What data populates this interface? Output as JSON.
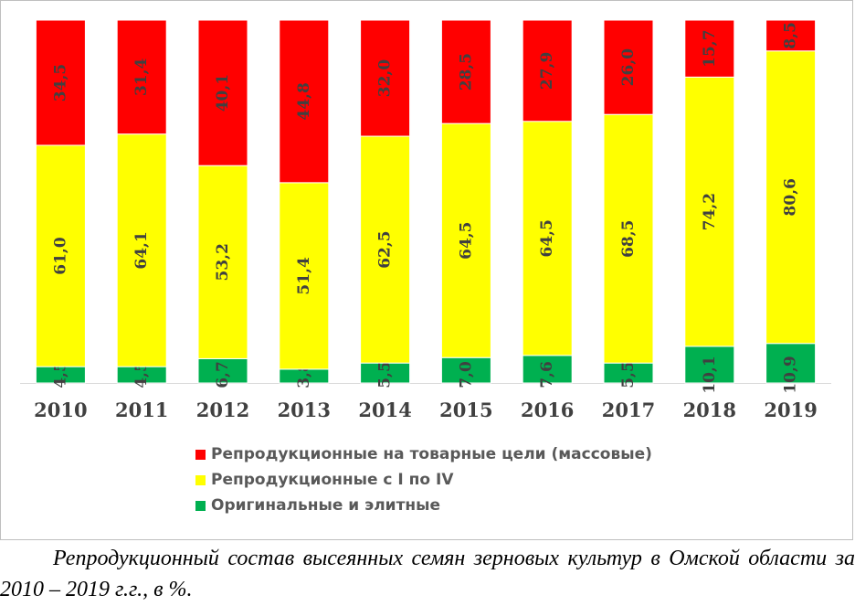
{
  "chart_data": {
    "type": "bar",
    "stacked": true,
    "normalized_percent": true,
    "categories": [
      "2010",
      "2011",
      "2012",
      "2013",
      "2014",
      "2015",
      "2016",
      "2017",
      "2018",
      "2019"
    ],
    "series": [
      {
        "name": "Оригинальные и элитные",
        "color": "#00b050",
        "values": [
          4.5,
          4.5,
          6.7,
          3.8,
          5.5,
          7.0,
          7.6,
          5.5,
          10.1,
          10.9
        ],
        "labels": [
          "4,5",
          "4,5",
          "6,7",
          "3,8",
          "5,5",
          "7,0",
          "7,6",
          "5,5",
          "10,1",
          "10,9"
        ]
      },
      {
        "name": "Репродукционные с I по IV",
        "color": "#ffff00",
        "values": [
          61.0,
          64.1,
          53.2,
          51.4,
          62.5,
          64.5,
          64.5,
          68.5,
          74.2,
          80.6
        ],
        "labels": [
          "61,0",
          "64,1",
          "53,2",
          "51,4",
          "62,5",
          "64,5",
          "64,5",
          "68,5",
          "74,2",
          "80,6"
        ]
      },
      {
        "name": "Репродукционные на товарные цели (массовые)",
        "color": "#ff0000",
        "values": [
          34.5,
          31.4,
          40.1,
          44.8,
          32.0,
          28.5,
          27.9,
          26.0,
          15.7,
          8.5
        ],
        "labels": [
          "34,5",
          "31,4",
          "40,1",
          "44,8",
          "32,0",
          "28,5",
          "27,9",
          "26,0",
          "15,7",
          "8,5"
        ]
      }
    ],
    "legend_order": [
      2,
      1,
      0
    ],
    "legend_position": "bottom",
    "grid": false
  },
  "caption": "Репродукционный состав высеянных семян зерновых культур в Омской области за 2010 – 2019 г.г., в %."
}
